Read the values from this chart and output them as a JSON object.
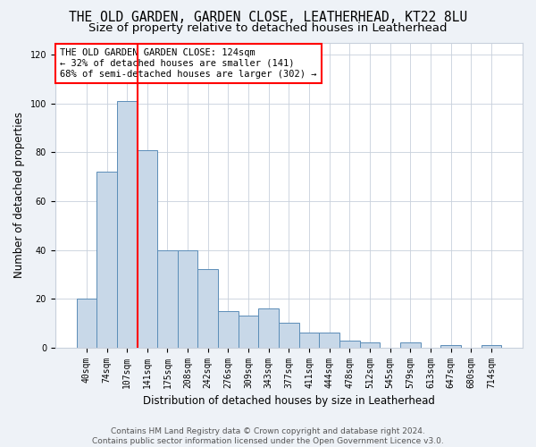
{
  "title_line1": "THE OLD GARDEN, GARDEN CLOSE, LEATHERHEAD, KT22 8LU",
  "title_line2": "Size of property relative to detached houses in Leatherhead",
  "xlabel": "Distribution of detached houses by size in Leatherhead",
  "ylabel": "Number of detached properties",
  "bar_color": "#c8d8e8",
  "bar_edge_color": "#5b8db8",
  "categories": [
    "40sqm",
    "74sqm",
    "107sqm",
    "141sqm",
    "175sqm",
    "208sqm",
    "242sqm",
    "276sqm",
    "309sqm",
    "343sqm",
    "377sqm",
    "411sqm",
    "444sqm",
    "478sqm",
    "512sqm",
    "545sqm",
    "579sqm",
    "613sqm",
    "647sqm",
    "680sqm",
    "714sqm"
  ],
  "values": [
    20,
    72,
    101,
    81,
    40,
    40,
    32,
    15,
    13,
    16,
    10,
    6,
    6,
    3,
    2,
    0,
    2,
    0,
    1,
    0,
    1
  ],
  "ylim": [
    0,
    125
  ],
  "yticks": [
    0,
    20,
    40,
    60,
    80,
    100,
    120
  ],
  "property_line_x": 2.5,
  "annotation_text_line1": "THE OLD GARDEN GARDEN CLOSE: 124sqm",
  "annotation_text_line2": "← 32% of detached houses are smaller (141)",
  "annotation_text_line3": "68% of semi-detached houses are larger (302) →",
  "footer_line1": "Contains HM Land Registry data © Crown copyright and database right 2024.",
  "footer_line2": "Contains public sector information licensed under the Open Government Licence v3.0.",
  "background_color": "#eef2f7",
  "plot_bg_color": "#ffffff",
  "grid_color": "#c8d0dc",
  "title_fontsize": 10.5,
  "subtitle_fontsize": 9.5,
  "axis_label_fontsize": 8.5,
  "tick_fontsize": 7,
  "footer_fontsize": 6.5,
  "annot_fontsize": 7.5
}
